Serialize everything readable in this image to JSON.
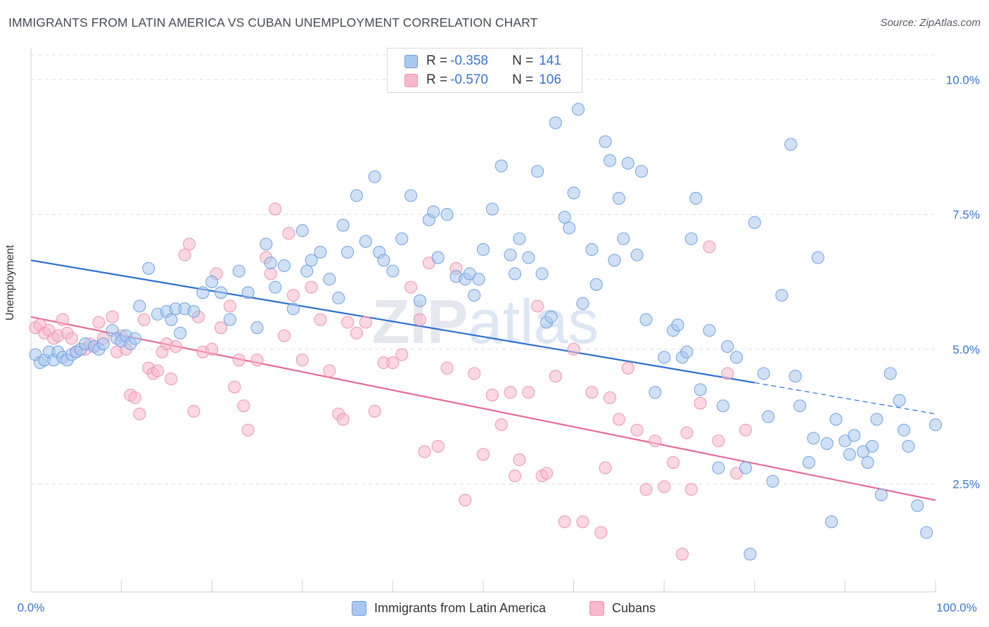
{
  "title": "IMMIGRANTS FROM LATIN AMERICA VS CUBAN UNEMPLOYMENT CORRELATION CHART",
  "source": "Source: ZipAtlas.com",
  "legend": {
    "row1": {
      "r_label": "R = ",
      "r_value": "-0.358",
      "n_label": "N = ",
      "n_value": "141"
    },
    "row2": {
      "r_label": "R = ",
      "r_value": "-0.570",
      "n_label": "N = ",
      "n_value": "106"
    }
  },
  "bottom_legend": {
    "series1": "Immigrants from Latin America",
    "series2": "Cubans"
  },
  "colors": {
    "blue_fill": "#a9c8f0",
    "blue_stroke": "#6f9fe0",
    "blue_line": "#2b6fd0",
    "pink_fill": "#f7b8cb",
    "pink_stroke": "#ec93b0",
    "pink_line": "#e8699a",
    "axis_text": "#3b73d0",
    "grid": "#dddddd"
  },
  "chart_data": {
    "type": "scatter",
    "title": "IMMIGRANTS FROM LATIN AMERICA VS CUBAN UNEMPLOYMENT CORRELATION CHART",
    "xlabel": "",
    "ylabel": "Unemployment",
    "xlim": [
      0,
      100
    ],
    "ylim": [
      0.5,
      10.5
    ],
    "x_ticks": [
      "0.0%",
      "100.0%"
    ],
    "y_ticks": [
      {
        "value": 2.5,
        "label": "2.5%"
      },
      {
        "value": 5.0,
        "label": "5.0%"
      },
      {
        "value": 7.5,
        "label": "7.5%"
      },
      {
        "value": 10.0,
        "label": "10.0%"
      }
    ],
    "grid": true,
    "legend_position": "top-center",
    "watermark": "ZIPatlas",
    "series": [
      {
        "name": "Immigrants from Latin America",
        "color": "#a9c8f0",
        "trend": {
          "x0": 0,
          "y0": 6.65,
          "x1": 80,
          "y1": 4.38,
          "dashed_to_x": 100,
          "dashed_to_y": 3.8
        },
        "points": [
          [
            0.5,
            4.9
          ],
          [
            1.0,
            4.75
          ],
          [
            1.5,
            4.8
          ],
          [
            2.0,
            4.95
          ],
          [
            2.5,
            4.8
          ],
          [
            3.0,
            4.95
          ],
          [
            3.5,
            4.85
          ],
          [
            4.0,
            4.8
          ],
          [
            4.5,
            4.9
          ],
          [
            5.0,
            4.95
          ],
          [
            5.5,
            5.0
          ],
          [
            6.0,
            5.1
          ],
          [
            7.0,
            5.05
          ],
          [
            7.5,
            5.0
          ],
          [
            8.0,
            5.1
          ],
          [
            9.0,
            5.35
          ],
          [
            9.5,
            5.2
          ],
          [
            10.0,
            5.15
          ],
          [
            10.5,
            5.25
          ],
          [
            11.0,
            5.1
          ],
          [
            11.5,
            5.2
          ],
          [
            12.0,
            5.8
          ],
          [
            13.0,
            6.5
          ],
          [
            14.0,
            5.65
          ],
          [
            15.0,
            5.7
          ],
          [
            15.5,
            5.55
          ],
          [
            16.0,
            5.75
          ],
          [
            16.5,
            5.3
          ],
          [
            17.0,
            5.75
          ],
          [
            18.0,
            5.7
          ],
          [
            19.0,
            6.05
          ],
          [
            20.0,
            6.25
          ],
          [
            21.0,
            6.05
          ],
          [
            22.0,
            5.55
          ],
          [
            23.0,
            6.45
          ],
          [
            24.0,
            6.05
          ],
          [
            25.0,
            5.4
          ],
          [
            26.0,
            6.95
          ],
          [
            26.5,
            6.6
          ],
          [
            27.0,
            6.15
          ],
          [
            28.0,
            6.55
          ],
          [
            29.0,
            5.75
          ],
          [
            30.0,
            7.2
          ],
          [
            30.5,
            6.45
          ],
          [
            31.0,
            6.65
          ],
          [
            32.0,
            6.8
          ],
          [
            33.0,
            6.3
          ],
          [
            34.0,
            5.95
          ],
          [
            34.5,
            7.3
          ],
          [
            35.0,
            6.8
          ],
          [
            36.0,
            7.85
          ],
          [
            37.0,
            7.0
          ],
          [
            38.0,
            8.2
          ],
          [
            38.5,
            6.8
          ],
          [
            39.0,
            6.65
          ],
          [
            40.0,
            6.45
          ],
          [
            41.0,
            7.05
          ],
          [
            42.0,
            7.85
          ],
          [
            43.0,
            5.9
          ],
          [
            44.0,
            7.4
          ],
          [
            44.5,
            7.55
          ],
          [
            45.0,
            6.7
          ],
          [
            46.0,
            7.5
          ],
          [
            47.0,
            6.35
          ],
          [
            48.0,
            6.3
          ],
          [
            48.5,
            6.4
          ],
          [
            49.0,
            6.0
          ],
          [
            49.5,
            6.3
          ],
          [
            50.0,
            6.85
          ],
          [
            51.0,
            7.6
          ],
          [
            52.0,
            8.4
          ],
          [
            53.0,
            6.75
          ],
          [
            53.5,
            6.4
          ],
          [
            54.0,
            7.05
          ],
          [
            55.0,
            6.7
          ],
          [
            56.0,
            8.3
          ],
          [
            56.5,
            6.4
          ],
          [
            57.0,
            5.5
          ],
          [
            57.5,
            5.6
          ],
          [
            58.0,
            9.2
          ],
          [
            59.0,
            7.45
          ],
          [
            59.5,
            7.25
          ],
          [
            60.0,
            7.9
          ],
          [
            61.0,
            5.85
          ],
          [
            62.0,
            6.85
          ],
          [
            62.5,
            6.2
          ],
          [
            63.5,
            8.85
          ],
          [
            64.0,
            8.5
          ],
          [
            64.5,
            6.65
          ],
          [
            65.0,
            7.8
          ],
          [
            65.5,
            7.05
          ],
          [
            66.0,
            8.45
          ],
          [
            67.0,
            6.75
          ],
          [
            67.5,
            8.3
          ],
          [
            68.0,
            5.55
          ],
          [
            69.0,
            4.2
          ],
          [
            70.0,
            4.85
          ],
          [
            71.0,
            5.35
          ],
          [
            71.5,
            5.45
          ],
          [
            72.0,
            4.85
          ],
          [
            72.5,
            4.95
          ],
          [
            73.0,
            7.05
          ],
          [
            73.5,
            7.8
          ],
          [
            74.0,
            4.25
          ],
          [
            75.0,
            5.35
          ],
          [
            76.0,
            2.8
          ],
          [
            76.5,
            3.95
          ],
          [
            77.0,
            5.05
          ],
          [
            78.0,
            4.85
          ],
          [
            79.0,
            2.8
          ],
          [
            79.5,
            1.2
          ],
          [
            80.0,
            7.35
          ],
          [
            81.0,
            4.55
          ],
          [
            81.5,
            3.75
          ],
          [
            82.0,
            2.55
          ],
          [
            83.0,
            6.0
          ],
          [
            84.0,
            8.8
          ],
          [
            84.5,
            4.5
          ],
          [
            85.0,
            3.95
          ],
          [
            86.0,
            2.9
          ],
          [
            86.5,
            3.35
          ],
          [
            87.0,
            6.7
          ],
          [
            88.0,
            3.25
          ],
          [
            88.5,
            1.8
          ],
          [
            89.0,
            3.7
          ],
          [
            90.0,
            3.3
          ],
          [
            90.5,
            3.05
          ],
          [
            91.0,
            3.4
          ],
          [
            92.0,
            3.1
          ],
          [
            92.5,
            2.9
          ],
          [
            93.0,
            3.2
          ],
          [
            94.0,
            2.3
          ],
          [
            95.0,
            4.55
          ],
          [
            96.0,
            4.05
          ],
          [
            96.5,
            3.5
          ],
          [
            97.0,
            3.2
          ],
          [
            98.0,
            2.1
          ],
          [
            99.0,
            1.6
          ],
          [
            100.0,
            3.6
          ],
          [
            93.5,
            3.7
          ],
          [
            60.5,
            9.45
          ]
        ]
      },
      {
        "name": "Cubans",
        "color": "#f7b8cb",
        "trend": {
          "x0": 0,
          "y0": 5.6,
          "x1": 100,
          "y1": 2.2
        },
        "points": [
          [
            0.5,
            5.4
          ],
          [
            1.0,
            5.45
          ],
          [
            1.5,
            5.3
          ],
          [
            2.0,
            5.35
          ],
          [
            2.5,
            5.2
          ],
          [
            3.0,
            5.25
          ],
          [
            3.5,
            5.55
          ],
          [
            4.0,
            5.3
          ],
          [
            4.5,
            5.2
          ],
          [
            5.0,
            4.95
          ],
          [
            6.0,
            5.0
          ],
          [
            6.5,
            5.1
          ],
          [
            7.0,
            5.05
          ],
          [
            7.5,
            5.5
          ],
          [
            8.0,
            5.2
          ],
          [
            9.0,
            5.6
          ],
          [
            9.5,
            4.95
          ],
          [
            10.0,
            5.25
          ],
          [
            10.5,
            5.0
          ],
          [
            11.0,
            4.15
          ],
          [
            11.5,
            4.1
          ],
          [
            12.0,
            3.8
          ],
          [
            12.5,
            5.55
          ],
          [
            13.0,
            4.65
          ],
          [
            13.5,
            4.55
          ],
          [
            14.0,
            4.6
          ],
          [
            14.5,
            4.95
          ],
          [
            15.0,
            5.1
          ],
          [
            15.5,
            4.45
          ],
          [
            16.0,
            5.05
          ],
          [
            17.0,
            6.75
          ],
          [
            17.5,
            6.95
          ],
          [
            18.0,
            3.85
          ],
          [
            18.5,
            5.6
          ],
          [
            19.0,
            4.95
          ],
          [
            20.0,
            5.0
          ],
          [
            20.5,
            6.4
          ],
          [
            21.0,
            5.4
          ],
          [
            22.0,
            5.8
          ],
          [
            22.5,
            4.3
          ],
          [
            23.0,
            4.8
          ],
          [
            23.5,
            3.95
          ],
          [
            24.0,
            3.5
          ],
          [
            25.0,
            4.8
          ],
          [
            26.0,
            6.7
          ],
          [
            26.5,
            6.4
          ],
          [
            27.0,
            7.6
          ],
          [
            28.0,
            5.25
          ],
          [
            28.5,
            7.15
          ],
          [
            29.0,
            6.0
          ],
          [
            30.0,
            4.8
          ],
          [
            31.0,
            6.15
          ],
          [
            32.0,
            5.55
          ],
          [
            33.0,
            4.6
          ],
          [
            34.0,
            3.8
          ],
          [
            34.5,
            3.7
          ],
          [
            35.0,
            5.5
          ],
          [
            36.0,
            5.3
          ],
          [
            37.0,
            5.5
          ],
          [
            38.0,
            3.85
          ],
          [
            39.0,
            4.75
          ],
          [
            40.0,
            4.75
          ],
          [
            41.0,
            4.9
          ],
          [
            42.0,
            6.15
          ],
          [
            43.0,
            5.55
          ],
          [
            43.5,
            3.1
          ],
          [
            44.0,
            6.6
          ],
          [
            45.0,
            3.2
          ],
          [
            46.0,
            4.65
          ],
          [
            47.0,
            6.5
          ],
          [
            48.0,
            2.2
          ],
          [
            49.0,
            4.55
          ],
          [
            50.0,
            3.05
          ],
          [
            51.0,
            4.15
          ],
          [
            52.0,
            3.6
          ],
          [
            53.0,
            4.2
          ],
          [
            53.5,
            2.65
          ],
          [
            54.0,
            2.95
          ],
          [
            55.0,
            4.2
          ],
          [
            56.0,
            5.8
          ],
          [
            56.5,
            2.65
          ],
          [
            57.0,
            2.7
          ],
          [
            58.0,
            4.5
          ],
          [
            59.0,
            1.8
          ],
          [
            60.0,
            5.0
          ],
          [
            61.0,
            1.8
          ],
          [
            62.0,
            4.2
          ],
          [
            63.0,
            1.6
          ],
          [
            63.5,
            2.8
          ],
          [
            64.0,
            4.1
          ],
          [
            65.0,
            3.7
          ],
          [
            66.0,
            4.65
          ],
          [
            67.0,
            3.5
          ],
          [
            68.0,
            2.4
          ],
          [
            69.0,
            3.3
          ],
          [
            70.0,
            2.45
          ],
          [
            71.0,
            2.9
          ],
          [
            72.0,
            1.2
          ],
          [
            72.5,
            3.45
          ],
          [
            73.0,
            2.4
          ],
          [
            74.0,
            4.0
          ],
          [
            75.0,
            6.9
          ],
          [
            76.0,
            3.3
          ],
          [
            77.0,
            4.55
          ],
          [
            78.0,
            2.7
          ],
          [
            79.0,
            3.5
          ]
        ]
      }
    ]
  }
}
